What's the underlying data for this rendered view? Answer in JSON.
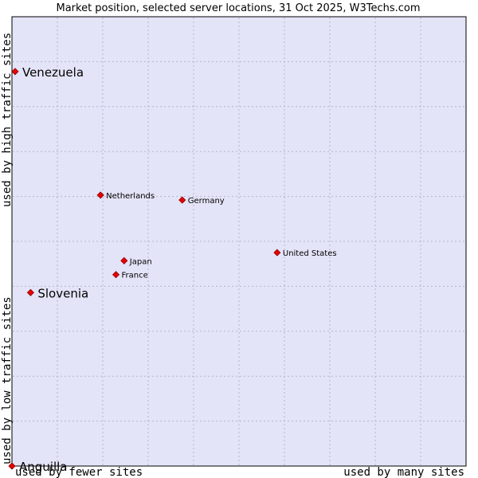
{
  "chart_data": {
    "type": "scatter",
    "title": "Market position, selected server locations, 31 Oct 2025, W3Techs.com",
    "xlabel_left": "used by fewer sites",
    "xlabel_right": "used by many sites",
    "ylabel_bottom": "used by low traffic sites",
    "ylabel_top": "used by high traffic sites",
    "xlim": [
      0,
      10
    ],
    "ylim": [
      0,
      10
    ],
    "grid": true,
    "colors": {
      "plot_bg": "#e4e4f8",
      "grid": "#b4b4cc",
      "marker": "#e80000",
      "marker_edge": "#8c0000"
    },
    "points": [
      {
        "name": "Venezuela",
        "x": 0.07,
        "y": 8.78,
        "size": "large"
      },
      {
        "name": "Netherlands",
        "x": 1.95,
        "y": 6.03,
        "size": "small"
      },
      {
        "name": "Germany",
        "x": 3.75,
        "y": 5.92,
        "size": "small"
      },
      {
        "name": "United States",
        "x": 5.84,
        "y": 4.75,
        "size": "small"
      },
      {
        "name": "Japan",
        "x": 2.47,
        "y": 4.57,
        "size": "small"
      },
      {
        "name": "France",
        "x": 2.29,
        "y": 4.26,
        "size": "small"
      },
      {
        "name": "Slovenia",
        "x": 0.41,
        "y": 3.86,
        "size": "large"
      },
      {
        "name": "Anguilla",
        "x": 0.0,
        "y": 0.0,
        "size": "large"
      }
    ]
  }
}
